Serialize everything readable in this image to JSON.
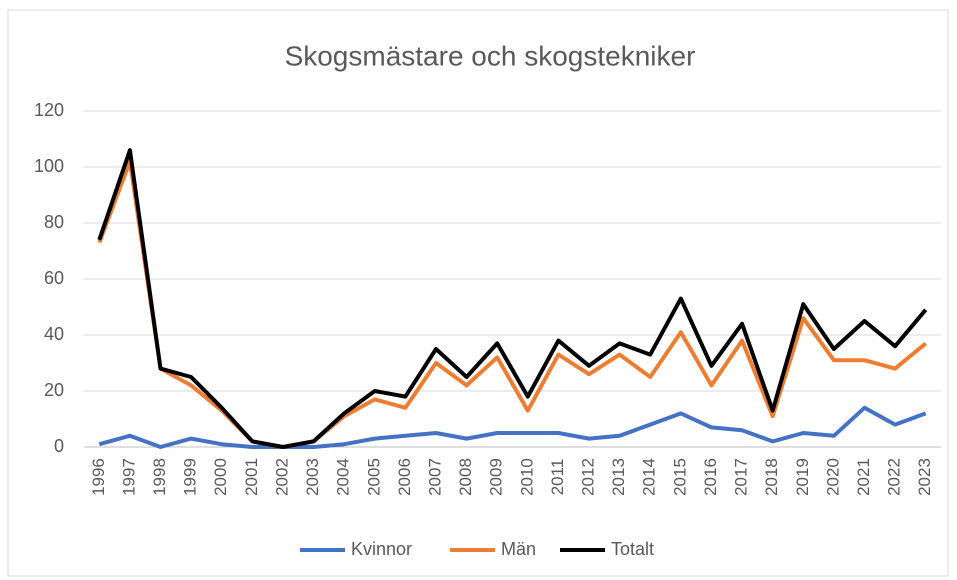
{
  "chart_data": {
    "type": "line",
    "title": "Skogsmästare och skogstekniker",
    "categories": [
      "1996",
      "1997",
      "1998",
      "1999",
      "2000",
      "2001",
      "2002",
      "2003",
      "2004",
      "2005",
      "2006",
      "2007",
      "2008",
      "2009",
      "2010",
      "2011",
      "2012",
      "2013",
      "2014",
      "2015",
      "2016",
      "2017",
      "2018",
      "2019",
      "2020",
      "2021",
      "2022",
      "2023"
    ],
    "series": [
      {
        "name": "Kvinnor",
        "color": "#4472c4",
        "values": [
          1,
          4,
          0,
          3,
          1,
          0,
          0,
          0,
          1,
          3,
          4,
          5,
          3,
          5,
          5,
          5,
          3,
          4,
          8,
          12,
          7,
          6,
          2,
          5,
          4,
          14,
          8,
          12
        ]
      },
      {
        "name": "Män",
        "color": "#ed7d31",
        "values": [
          73,
          102,
          28,
          22,
          13,
          2,
          0,
          2,
          11,
          17,
          14,
          30,
          22,
          32,
          13,
          33,
          26,
          33,
          25,
          41,
          22,
          38,
          11,
          46,
          31,
          31,
          28,
          37
        ]
      },
      {
        "name": "Totalt",
        "color": "#000000",
        "values": [
          74,
          106,
          28,
          25,
          14,
          2,
          0,
          2,
          12,
          20,
          18,
          35,
          25,
          37,
          18,
          38,
          29,
          37,
          33,
          53,
          29,
          44,
          13,
          51,
          35,
          45,
          36,
          49
        ]
      }
    ],
    "ylim": [
      0,
      120
    ],
    "yticks": [
      0,
      20,
      40,
      60,
      80,
      100,
      120
    ],
    "grid": true,
    "legend": "bottom"
  }
}
